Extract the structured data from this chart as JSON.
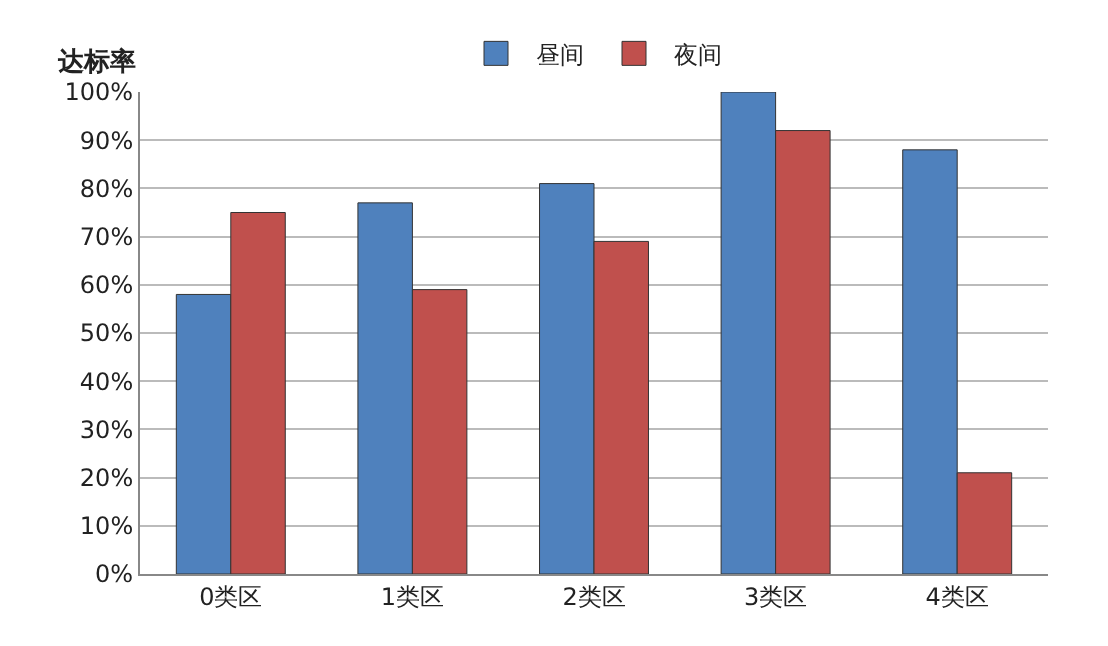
{
  "chart_data": {
    "type": "bar",
    "ylabel": "达标率",
    "categories": [
      "0类区",
      "1类区",
      "2类区",
      "3类区",
      "4类区"
    ],
    "series": [
      {
        "name": "昼间",
        "color": "#4f81bd",
        "values": [
          58,
          77,
          81,
          100,
          88
        ]
      },
      {
        "name": "夜间",
        "color": "#c0504d",
        "values": [
          75,
          59,
          69,
          92,
          21
        ]
      }
    ],
    "ylim": [
      0,
      100
    ],
    "yticks": [
      {
        "value": 0,
        "label": "0%"
      },
      {
        "value": 10,
        "label": "10%"
      },
      {
        "value": 20,
        "label": "20%"
      },
      {
        "value": 30,
        "label": "30%"
      },
      {
        "value": 40,
        "label": "40%"
      },
      {
        "value": 50,
        "label": "50%"
      },
      {
        "value": 60,
        "label": "60%"
      },
      {
        "value": 70,
        "label": "70%"
      },
      {
        "value": 80,
        "label": "80%"
      },
      {
        "value": 90,
        "label": "90%"
      },
      {
        "value": 100,
        "label": "100%"
      }
    ],
    "grid": "y",
    "legend": "top"
  }
}
